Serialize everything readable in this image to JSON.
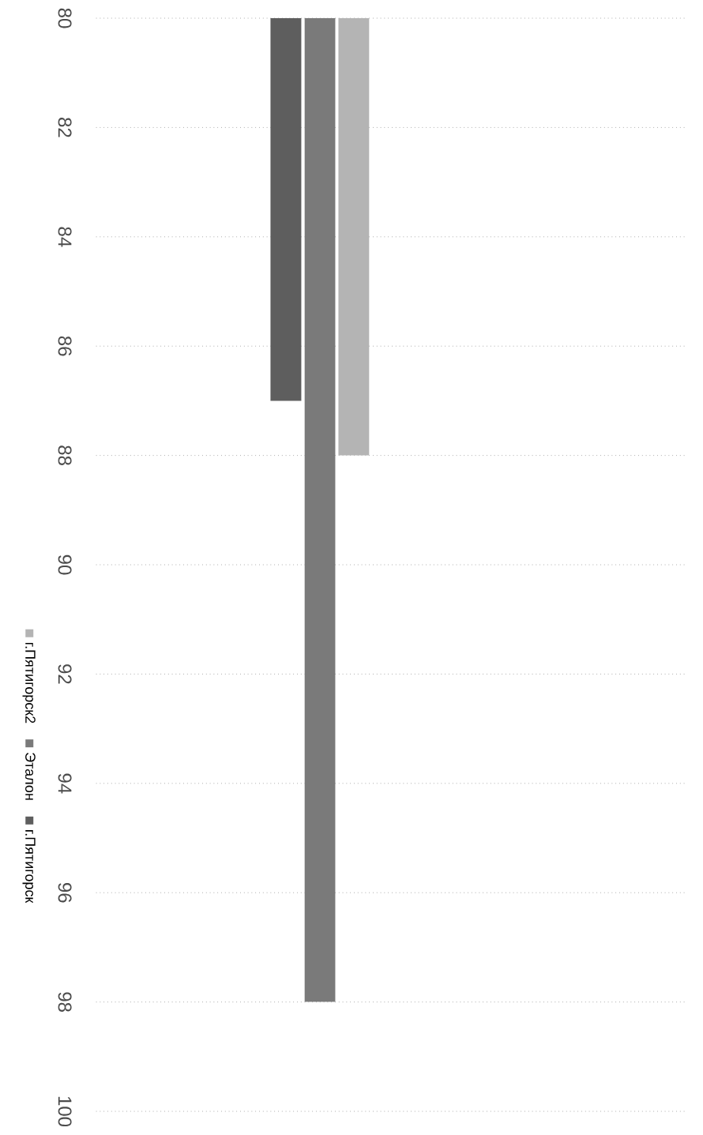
{
  "chart_data": {
    "type": "bar",
    "categories": [
      null
    ],
    "series": [
      {
        "name": "г.Пятигорск",
        "color": "#5e5e5e",
        "values": [
          87
        ]
      },
      {
        "name": "Эталон",
        "color": "#7a7a7a",
        "values": [
          98
        ]
      },
      {
        "name": "г.Пятигорск2",
        "color": "#b4b4b4",
        "values": [
          88
        ]
      }
    ],
    "ylim": [
      100,
      80
    ],
    "yticks": [
      80,
      82,
      84,
      86,
      88,
      90,
      92,
      94,
      96,
      98,
      100
    ],
    "grid": "y",
    "legend": "left"
  }
}
